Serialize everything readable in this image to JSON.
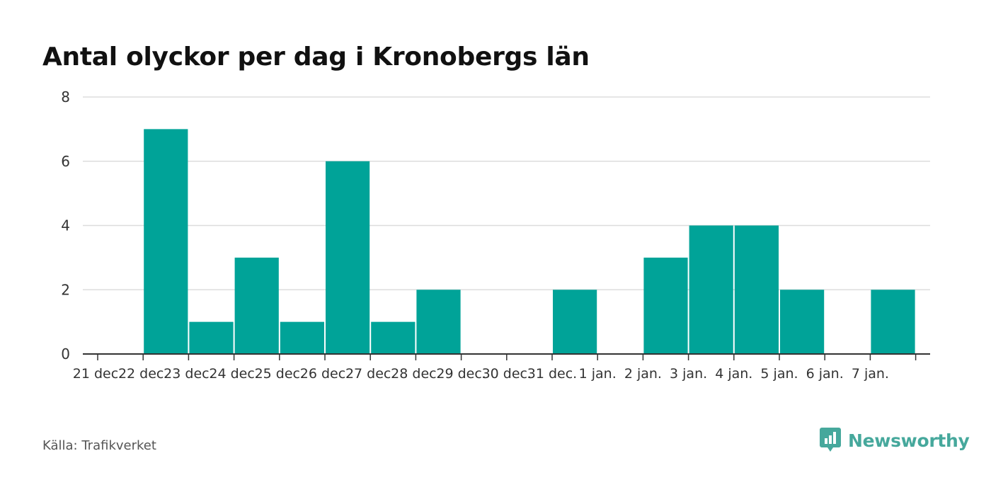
{
  "chart_data": {
    "type": "bar",
    "title": "Antal olyckor per dag i Kronobergs län",
    "xlabel": "",
    "ylabel": "",
    "categories": [
      "21 dec.",
      "22 dec.",
      "23 dec.",
      "24 dec.",
      "25 dec.",
      "26 dec.",
      "27 dec.",
      "28 dec.",
      "29 dec.",
      "30 dec.",
      "31 dec.",
      "1 jan.",
      "2 jan.",
      "3 jan.",
      "4 jan.",
      "5 jan.",
      "6 jan.",
      "7 jan."
    ],
    "values": [
      0,
      7,
      1,
      3,
      1,
      6,
      1,
      2,
      0,
      0,
      2,
      0,
      3,
      4,
      4,
      2,
      0,
      2
    ],
    "ylim": [
      0,
      8
    ],
    "yticks": [
      0,
      2,
      4,
      6,
      8
    ],
    "grid": true,
    "bar_color": "#00A398"
  },
  "source_text": "Källa: Trafikverket",
  "brand": {
    "name": "Newsworthy",
    "logo_icon": "newsworthy-logo-icon",
    "color": "#46A89C"
  }
}
